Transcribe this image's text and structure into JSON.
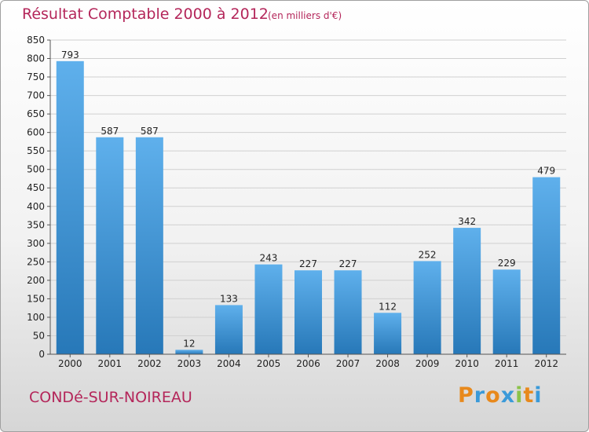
{
  "header": {
    "title": "Résultat Comptable 2000 à 2012",
    "unit": "(en milliers d'€)"
  },
  "footer": {
    "commune": "CONDé-SUR-NOIREAU",
    "logo": [
      "P",
      "r",
      "o",
      "x",
      "i",
      "t",
      "i"
    ],
    "logo_colors": [
      "#e8891c",
      "#3a9ad9",
      "#e8891c",
      "#3a9ad9",
      "#8bc34a",
      "#e8891c",
      "#3a9ad9"
    ]
  },
  "colors": {
    "bar_light": "#5fb0ec",
    "bar_dark": "#2778b8",
    "grid": "#d0d0d0",
    "accent": "#b4265a"
  },
  "chart_data": {
    "type": "bar",
    "title": "Résultat Comptable 2000 à 2012",
    "xlabel": "",
    "ylabel": "",
    "ylim": [
      0,
      850
    ],
    "yticks": [
      0,
      50,
      100,
      150,
      200,
      250,
      300,
      350,
      400,
      450,
      500,
      550,
      600,
      650,
      700,
      750,
      800,
      850
    ],
    "grid": true,
    "categories": [
      "2000",
      "2001",
      "2002",
      "2003",
      "2004",
      "2005",
      "2006",
      "2007",
      "2008",
      "2009",
      "2010",
      "2011",
      "2012"
    ],
    "values": [
      793,
      587,
      587,
      12,
      133,
      243,
      227,
      227,
      112,
      252,
      342,
      229,
      479
    ]
  }
}
